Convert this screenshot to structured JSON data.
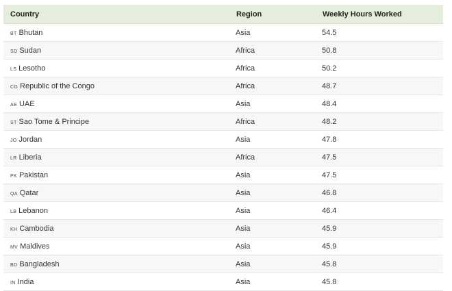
{
  "table": {
    "headers": [
      "Country",
      "Region",
      "Weekly Hours Worked"
    ],
    "rows": [
      {
        "code": "BT",
        "country": "Bhutan",
        "region": "Asia",
        "hours": "54.5"
      },
      {
        "code": "SD",
        "country": "Sudan",
        "region": "Africa",
        "hours": "50.8"
      },
      {
        "code": "LS",
        "country": "Lesotho",
        "region": "Africa",
        "hours": "50.2"
      },
      {
        "code": "CG",
        "country": "Republic of the Congo",
        "region": "Africa",
        "hours": "48.7"
      },
      {
        "code": "AE",
        "country": "UAE",
        "region": "Asia",
        "hours": "48.4"
      },
      {
        "code": "ST",
        "country": "Sao Tome & Principe",
        "region": "Africa",
        "hours": "48.2"
      },
      {
        "code": "JO",
        "country": "Jordan",
        "region": "Asia",
        "hours": "47.8"
      },
      {
        "code": "LR",
        "country": "Liberia",
        "region": "Africa",
        "hours": "47.5"
      },
      {
        "code": "PK",
        "country": "Pakistan",
        "region": "Asia",
        "hours": "47.5"
      },
      {
        "code": "QA",
        "country": "Qatar",
        "region": "Asia",
        "hours": "46.8"
      },
      {
        "code": "LB",
        "country": "Lebanon",
        "region": "Asia",
        "hours": "46.4"
      },
      {
        "code": "KH",
        "country": "Cambodia",
        "region": "Asia",
        "hours": "45.9"
      },
      {
        "code": "MV",
        "country": "Maldives",
        "region": "Asia",
        "hours": "45.9"
      },
      {
        "code": "BD",
        "country": "Bangladesh",
        "region": "Asia",
        "hours": "45.8"
      },
      {
        "code": "IN",
        "country": "India",
        "region": "Asia",
        "hours": "45.8"
      }
    ]
  },
  "colors": {
    "header_bg": "#e5eedc",
    "alt_row_bg": "#f7f7f7"
  }
}
